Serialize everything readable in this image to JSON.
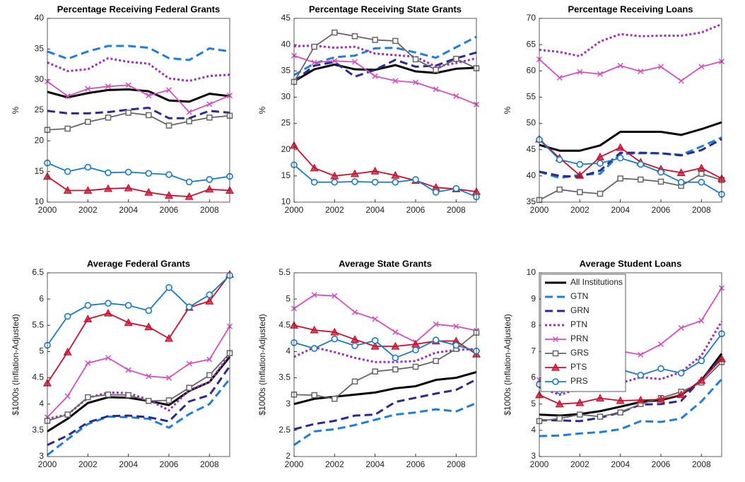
{
  "chart_data": [
    {
      "type": "line",
      "title": "Percentage Receiving Federal Grants",
      "ylabel": "%",
      "x": [
        2000,
        2001,
        2002,
        2003,
        2004,
        2005,
        2006,
        2007,
        2008,
        2009
      ],
      "xlim": [
        2000,
        2009
      ],
      "xticks": [
        2000,
        2002,
        2004,
        2006,
        2008
      ],
      "ylim": [
        10,
        40
      ],
      "yticks": [
        10,
        15,
        20,
        25,
        30,
        35,
        40
      ],
      "series": [
        {
          "color": "#000000",
          "style": "solid",
          "values": [
            28,
            27.1,
            27.8,
            28.3,
            28.4,
            28.1,
            26.6,
            26.4,
            27.7,
            27.3
          ]
        },
        {
          "color": "#1f7fd6",
          "style": "dashed",
          "values": [
            34.6,
            33.4,
            34.6,
            35.5,
            35.5,
            35.2,
            33.5,
            33.2,
            35.1,
            34.6
          ]
        },
        {
          "color": "#2b2b8c",
          "style": "dashed",
          "values": [
            24.9,
            24.5,
            24.5,
            24.7,
            25.1,
            25.4,
            23.7,
            23.7,
            24.9,
            24.6
          ]
        },
        {
          "color": "#a030b8",
          "style": "dotted",
          "values": [
            32.8,
            31.4,
            31.7,
            33.5,
            32.9,
            32.6,
            30.2,
            29.8,
            30.6,
            30.8
          ]
        },
        {
          "color": "#d44fbf",
          "style": "solid",
          "marker": "x",
          "values": [
            29.7,
            27.3,
            28.5,
            28.9,
            29.1,
            27.4,
            28.3,
            24.7,
            26.0,
            27.4
          ]
        },
        {
          "color": "#666666",
          "style": "solid",
          "marker": "square",
          "values": [
            21.8,
            22.0,
            23.1,
            23.8,
            24.6,
            24.2,
            22.5,
            23.2,
            23.8,
            24.1
          ]
        },
        {
          "color": "#c8102e",
          "style": "solid",
          "marker": "triangle",
          "values": [
            14.2,
            11.9,
            11.9,
            12.2,
            12.3,
            11.6,
            11.1,
            10.9,
            12.1,
            11.9
          ]
        },
        {
          "color": "#1a7ac4",
          "style": "solid",
          "marker": "circle",
          "values": [
            16.4,
            15.0,
            15.7,
            14.8,
            14.9,
            14.7,
            14.5,
            13.3,
            13.7,
            14.2
          ]
        }
      ]
    },
    {
      "type": "line",
      "title": "Percentage Receiving State Grants",
      "ylabel": "%",
      "x": [
        2000,
        2001,
        2002,
        2003,
        2004,
        2005,
        2006,
        2007,
        2008,
        2009
      ],
      "xlim": [
        2000,
        2009
      ],
      "xticks": [
        2000,
        2002,
        2004,
        2006,
        2008
      ],
      "ylim": [
        10,
        45
      ],
      "yticks": [
        10,
        15,
        20,
        25,
        30,
        35,
        40,
        45
      ],
      "series": [
        {
          "color": "#000000",
          "style": "solid",
          "values": [
            33.0,
            35.3,
            36.2,
            35.3,
            35.2,
            36.1,
            34.9,
            34.6,
            35.4,
            35.6
          ]
        },
        {
          "color": "#1f7fd6",
          "style": "dashed",
          "values": [
            34.2,
            36.4,
            37.6,
            37.9,
            39.3,
            39.4,
            38.5,
            37.5,
            39.5,
            41.5
          ]
        },
        {
          "color": "#2b2b8c",
          "style": "dashed",
          "values": [
            33.0,
            36.0,
            36.7,
            33.9,
            35.2,
            37.1,
            35.8,
            36.0,
            37.4,
            38.5
          ]
        },
        {
          "color": "#a030b8",
          "style": "dotted",
          "values": [
            39.7,
            39.8,
            39.4,
            39.6,
            38.3,
            38.0,
            37.7,
            35.8,
            36.5,
            37.4
          ]
        },
        {
          "color": "#d44fbf",
          "style": "solid",
          "marker": "x",
          "values": [
            37.9,
            36.6,
            36.9,
            36.7,
            34.0,
            33.1,
            32.8,
            31.5,
            30.2,
            28.6
          ]
        },
        {
          "color": "#666666",
          "style": "solid",
          "marker": "square",
          "values": [
            32.9,
            39.6,
            42.3,
            41.6,
            40.9,
            40.7,
            37.2,
            35.2,
            37.3,
            35.5
          ]
        },
        {
          "color": "#c8102e",
          "style": "solid",
          "marker": "triangle",
          "values": [
            20.8,
            16.5,
            15.0,
            15.4,
            15.9,
            15.1,
            14.1,
            12.8,
            12.5,
            12.0
          ]
        },
        {
          "color": "#1a7ac4",
          "style": "solid",
          "marker": "circle",
          "values": [
            17.1,
            13.8,
            13.8,
            13.9,
            13.8,
            13.8,
            14.3,
            11.9,
            12.6,
            11.0
          ]
        }
      ]
    },
    {
      "type": "line",
      "title": "Percentage Receiving Loans",
      "ylabel": "%",
      "x": [
        2000,
        2001,
        2002,
        2003,
        2004,
        2005,
        2006,
        2007,
        2008,
        2009
      ],
      "xlim": [
        2000,
        2009
      ],
      "xticks": [
        2000,
        2002,
        2004,
        2006,
        2008
      ],
      "ylim": [
        35,
        70
      ],
      "yticks": [
        35,
        40,
        45,
        50,
        55,
        60,
        65,
        70
      ],
      "series": [
        {
          "color": "#000000",
          "style": "solid",
          "values": [
            45.9,
            44.8,
            44.8,
            45.8,
            48.4,
            48.4,
            48.4,
            47.8,
            48.9,
            50.2
          ]
        },
        {
          "color": "#1f7fd6",
          "style": "dashed",
          "values": [
            40.8,
            39.6,
            40.2,
            40.4,
            44.2,
            44.3,
            44.3,
            44.0,
            45.6,
            47.3
          ]
        },
        {
          "color": "#2b2b8c",
          "style": "dashed",
          "values": [
            40.8,
            40.0,
            39.8,
            41.0,
            44.4,
            44.4,
            44.3,
            43.9,
            44.9,
            47.0
          ]
        },
        {
          "color": "#a030b8",
          "style": "dotted",
          "values": [
            64.0,
            63.6,
            62.8,
            65.6,
            67.0,
            66.6,
            66.7,
            66.7,
            67.3,
            68.9
          ]
        },
        {
          "color": "#d44fbf",
          "style": "solid",
          "marker": "x",
          "values": [
            62.2,
            58.7,
            59.8,
            59.4,
            61.0,
            59.9,
            60.8,
            58.1,
            60.8,
            61.8
          ]
        },
        {
          "color": "#666666",
          "style": "solid",
          "marker": "square",
          "values": [
            35.4,
            37.4,
            36.9,
            36.6,
            39.5,
            39.3,
            38.9,
            38.1,
            40.4,
            39.2
          ]
        },
        {
          "color": "#c8102e",
          "style": "solid",
          "marker": "triangle",
          "values": [
            47.0,
            43.4,
            40.1,
            43.6,
            45.4,
            42.6,
            41.3,
            40.6,
            41.5,
            39.5
          ]
        },
        {
          "color": "#1a7ac4",
          "style": "solid",
          "marker": "circle",
          "values": [
            46.9,
            43.1,
            42.2,
            42.4,
            43.4,
            42.2,
            40.7,
            38.8,
            38.8,
            36.5
          ]
        }
      ]
    },
    {
      "type": "line",
      "title": "Average Federal Grants",
      "ylabel": "$1000s (Inflation-Adjusted)",
      "x": [
        2000,
        2001,
        2002,
        2003,
        2004,
        2005,
        2006,
        2007,
        2008,
        2009
      ],
      "xlim": [
        2000,
        2009
      ],
      "xticks": [
        2000,
        2002,
        2004,
        2006,
        2008
      ],
      "ylim": [
        3,
        6.5
      ],
      "yticks": [
        3,
        3.5,
        4,
        4.5,
        5,
        5.5,
        6,
        6.5
      ],
      "series": [
        {
          "color": "#000000",
          "style": "solid",
          "values": [
            3.48,
            3.72,
            4.02,
            4.13,
            4.12,
            4.06,
            3.98,
            4.25,
            4.42,
            4.9
          ]
        },
        {
          "color": "#1f7fd6",
          "style": "dashed",
          "values": [
            3.03,
            3.33,
            3.62,
            3.76,
            3.75,
            3.72,
            3.55,
            3.81,
            4.0,
            4.48
          ]
        },
        {
          "color": "#2b2b8c",
          "style": "dashed",
          "values": [
            3.22,
            3.4,
            3.65,
            3.77,
            3.78,
            3.75,
            3.67,
            4.05,
            4.17,
            4.72
          ]
        },
        {
          "color": "#a030b8",
          "style": "dotted",
          "values": [
            3.72,
            3.8,
            4.12,
            4.22,
            4.21,
            4.08,
            3.88,
            4.27,
            4.42,
            4.95
          ]
        },
        {
          "color": "#d44fbf",
          "style": "solid",
          "marker": "x",
          "values": [
            3.75,
            4.15,
            4.78,
            4.88,
            4.65,
            4.53,
            4.5,
            4.77,
            4.85,
            5.48
          ]
        },
        {
          "color": "#666666",
          "style": "solid",
          "marker": "square",
          "values": [
            3.68,
            3.8,
            4.13,
            4.18,
            4.17,
            4.06,
            4.07,
            4.31,
            4.55,
            4.97
          ]
        },
        {
          "color": "#c8102e",
          "style": "solid",
          "marker": "triangle",
          "values": [
            4.4,
            4.99,
            5.62,
            5.73,
            5.55,
            5.47,
            5.25,
            5.84,
            5.96,
            6.47
          ]
        },
        {
          "color": "#1a7ac4",
          "style": "solid",
          "marker": "circle",
          "values": [
            5.12,
            5.67,
            5.88,
            5.92,
            5.88,
            5.78,
            6.22,
            5.85,
            6.08,
            6.45
          ]
        }
      ]
    },
    {
      "type": "line",
      "title": "Average State Grants",
      "ylabel": "$1000s (Inflation-Adjusted)",
      "x": [
        2000,
        2001,
        2002,
        2003,
        2004,
        2005,
        2006,
        2007,
        2008,
        2009
      ],
      "xlim": [
        2000,
        2009
      ],
      "xticks": [
        2000,
        2002,
        2004,
        2006,
        2008
      ],
      "ylim": [
        2,
        5.5
      ],
      "yticks": [
        2,
        2.5,
        3,
        3.5,
        4,
        4.5,
        5,
        5.5
      ],
      "series": [
        {
          "color": "#000000",
          "style": "solid",
          "values": [
            3.0,
            3.1,
            3.14,
            3.18,
            3.22,
            3.3,
            3.34,
            3.46,
            3.5,
            3.61
          ]
        },
        {
          "color": "#1f7fd6",
          "style": "dashed",
          "values": [
            2.22,
            2.48,
            2.52,
            2.6,
            2.7,
            2.8,
            2.84,
            2.9,
            2.86,
            3.02
          ]
        },
        {
          "color": "#2b2b8c",
          "style": "dashed",
          "values": [
            2.52,
            2.62,
            2.68,
            2.78,
            2.8,
            3.04,
            3.12,
            3.2,
            3.27,
            3.47
          ]
        },
        {
          "color": "#a030b8",
          "style": "dotted",
          "values": [
            3.9,
            4.08,
            3.99,
            3.88,
            3.8,
            3.8,
            3.82,
            3.98,
            4.03,
            4.05
          ]
        },
        {
          "color": "#d44fbf",
          "style": "solid",
          "marker": "x",
          "values": [
            4.82,
            5.08,
            5.06,
            4.75,
            4.62,
            4.37,
            4.18,
            4.52,
            4.48,
            4.4
          ]
        },
        {
          "color": "#666666",
          "style": "solid",
          "marker": "square",
          "values": [
            3.18,
            3.17,
            3.1,
            3.43,
            3.62,
            3.66,
            3.71,
            3.82,
            4.05,
            4.36
          ]
        },
        {
          "color": "#c8102e",
          "style": "solid",
          "marker": "triangle",
          "values": [
            4.5,
            4.41,
            4.37,
            4.23,
            4.1,
            4.1,
            4.14,
            4.2,
            4.2,
            3.95
          ]
        },
        {
          "color": "#1a7ac4",
          "style": "solid",
          "marker": "circle",
          "values": [
            4.17,
            4.06,
            4.24,
            4.11,
            4.21,
            3.88,
            4.03,
            4.22,
            4.12,
            4.01
          ]
        }
      ]
    },
    {
      "type": "line",
      "title": "Average Student Loans",
      "ylabel": "$1000s (Inflation-Adjusted)",
      "x": [
        2000,
        2001,
        2002,
        2003,
        2004,
        2005,
        2006,
        2007,
        2008,
        2009
      ],
      "xlim": [
        2000,
        2009
      ],
      "xticks": [
        2000,
        2002,
        2004,
        2006,
        2008
      ],
      "ylim": [
        3,
        10
      ],
      "yticks": [
        3,
        4,
        5,
        6,
        7,
        8,
        9,
        10
      ],
      "legend": "upper left",
      "series": [
        {
          "name": "All Institutions",
          "color": "#000000",
          "style": "solid",
          "values": [
            4.6,
            4.56,
            4.62,
            4.73,
            4.9,
            5.08,
            5.15,
            5.34,
            5.9,
            6.92
          ]
        },
        {
          "name": "GTN",
          "color": "#1f7fd6",
          "style": "dashed",
          "values": [
            3.78,
            3.8,
            3.88,
            3.93,
            4.04,
            4.35,
            4.32,
            4.45,
            5.1,
            5.95
          ]
        },
        {
          "name": "GRN",
          "color": "#2b2b8c",
          "style": "dashed",
          "values": [
            4.38,
            4.38,
            4.35,
            4.48,
            4.68,
            4.98,
            5.0,
            5.12,
            5.95,
            6.78
          ]
        },
        {
          "name": "PTN",
          "color": "#a030b8",
          "style": "dotted",
          "values": [
            5.65,
            5.35,
            5.6,
            5.7,
            5.8,
            6.02,
            5.95,
            6.22,
            6.85,
            8.15
          ]
        },
        {
          "name": "PRN",
          "color": "#d44fbf",
          "style": "solid",
          "marker": "x",
          "values": [
            5.92,
            5.85,
            6.2,
            6.18,
            7.02,
            6.88,
            7.28,
            7.9,
            8.18,
            9.42
          ]
        },
        {
          "name": "GRS",
          "color": "#666666",
          "style": "solid",
          "marker": "square",
          "values": [
            4.35,
            4.45,
            4.6,
            4.52,
            4.68,
            5.0,
            5.23,
            5.47,
            5.82,
            6.6
          ]
        },
        {
          "name": "PTS",
          "color": "#c8102e",
          "style": "solid",
          "marker": "triangle",
          "values": [
            5.35,
            5.0,
            5.05,
            5.22,
            5.13,
            5.15,
            5.18,
            5.36,
            5.9,
            6.72
          ]
        },
        {
          "name": "PRS",
          "color": "#1a7ac4",
          "style": "solid",
          "marker": "circle",
          "values": [
            5.75,
            5.5,
            5.65,
            6.03,
            6.32,
            6.1,
            6.35,
            6.18,
            6.65,
            7.68
          ]
        }
      ]
    }
  ]
}
